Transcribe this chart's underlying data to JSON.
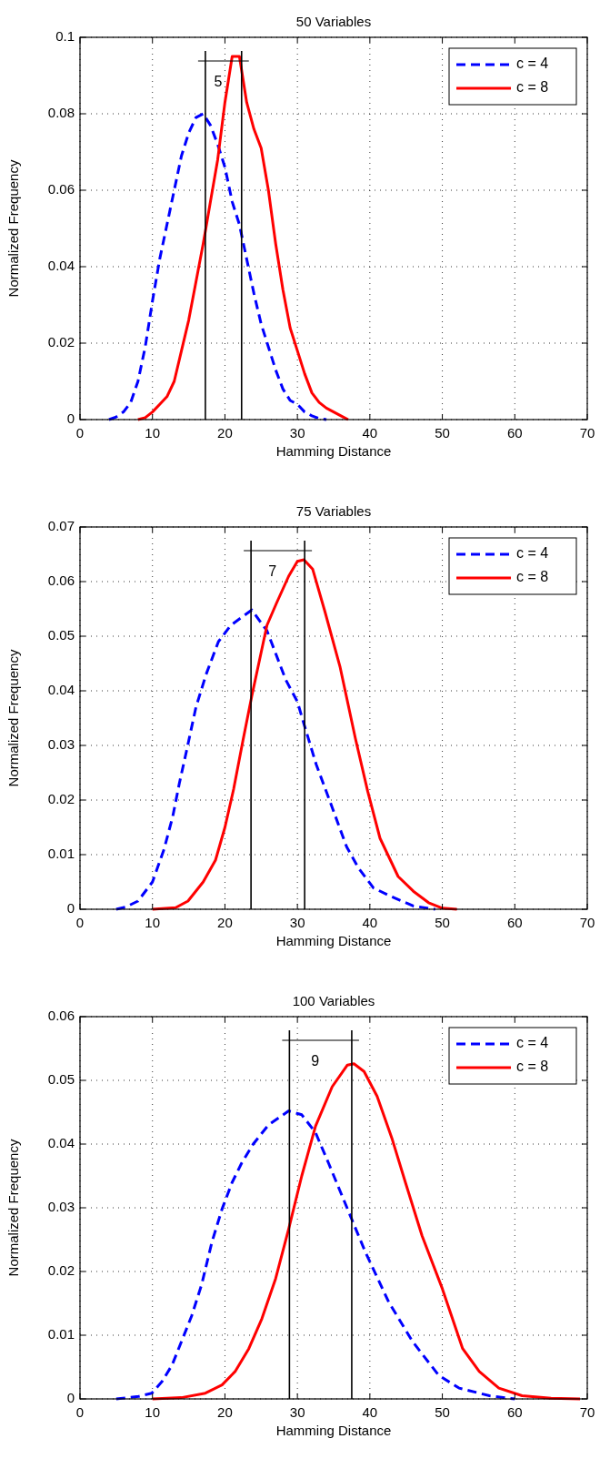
{
  "chart_data": [
    {
      "type": "line",
      "title": "50 Variables",
      "xlabel": "Hamming Distance",
      "ylabel": "Normalized Frequency",
      "xlim": [
        0,
        70
      ],
      "xticks": [
        0,
        10,
        20,
        30,
        40,
        50,
        60,
        70
      ],
      "ylim": [
        0,
        0.1
      ],
      "yticks": [
        0,
        0.02,
        0.04,
        0.06,
        0.08,
        0.1
      ],
      "grid": true,
      "legend": "top right",
      "series": [
        {
          "name": "c = 4",
          "color": "#0000ff",
          "line_style": "dashed",
          "x": [
            4,
            5,
            6,
            7,
            8,
            9,
            10,
            11,
            12,
            13,
            14,
            15,
            16,
            17,
            18,
            19,
            20,
            21,
            22,
            23,
            24,
            25,
            26,
            27,
            28,
            29,
            30,
            31,
            32,
            33,
            34
          ],
          "values": [
            0,
            0.0007,
            0.002,
            0.0045,
            0.01,
            0.019,
            0.031,
            0.042,
            0.051,
            0.06,
            0.069,
            0.075,
            0.079,
            0.08,
            0.077,
            0.072,
            0.066,
            0.057,
            0.051,
            0.042,
            0.033,
            0.025,
            0.019,
            0.013,
            0.008,
            0.005,
            0.004,
            0.002,
            0.001,
            0.0003,
            0
          ]
        },
        {
          "name": "c = 8",
          "color": "#ff0000",
          "line_style": "solid",
          "x": [
            8,
            9,
            10,
            11,
            12,
            13,
            14,
            15,
            16,
            17,
            18,
            19,
            20,
            21,
            22,
            23,
            24,
            25,
            26,
            27,
            28,
            29,
            30,
            31,
            32,
            33,
            34,
            35,
            36,
            37
          ],
          "values": [
            0,
            0.0005,
            0.002,
            0.004,
            0.006,
            0.01,
            0.018,
            0.026,
            0.036,
            0.046,
            0.057,
            0.068,
            0.083,
            0.095,
            0.095,
            0.083,
            0.076,
            0.071,
            0.06,
            0.046,
            0.034,
            0.024,
            0.018,
            0.012,
            0.007,
            0.0045,
            0.003,
            0.002,
            0.001,
            0
          ]
        }
      ],
      "ref_lines": [
        {
          "axis": "x",
          "value": 17.3,
          "color": "#000000"
        },
        {
          "axis": "x",
          "value": 22.3,
          "color": "#000000"
        }
      ],
      "annotations": [
        "5"
      ]
    },
    {
      "type": "line",
      "title": "75 Variables",
      "xlabel": "Hamming Distance",
      "ylabel": "Normalized Frequency",
      "xlim": [
        0,
        70
      ],
      "xticks": [
        0,
        10,
        20,
        30,
        40,
        50,
        60,
        70
      ],
      "ylim": [
        0,
        0.07
      ],
      "yticks": [
        0,
        0.01,
        0.02,
        0.03,
        0.04,
        0.05,
        0.06,
        0.07
      ],
      "grid": true,
      "legend": "top right",
      "series": [
        {
          "name": "c = 4",
          "color": "#0000ff",
          "line_style": "dashed",
          "x": [
            5,
            6.3,
            8,
            10,
            11.6,
            12.8,
            13.7,
            14.7,
            16,
            17.4,
            19.1,
            20.8,
            23.7,
            25.8,
            28.4,
            30,
            31,
            32.6,
            34.7,
            36.8,
            38.4,
            40.5,
            43,
            46,
            49
          ],
          "values": [
            0,
            0.0004,
            0.0015,
            0.005,
            0.011,
            0.017,
            0.023,
            0.029,
            0.037,
            0.043,
            0.049,
            0.052,
            0.0548,
            0.051,
            0.042,
            0.038,
            0.0335,
            0.0265,
            0.019,
            0.0114,
            0.0076,
            0.0039,
            0.0023,
            0.0006,
            0
          ]
        },
        {
          "name": "c = 8",
          "color": "#ff0000",
          "line_style": "solid",
          "x": [
            10,
            13.2,
            14.9,
            17,
            18.7,
            20,
            21.2,
            22.5,
            23.7,
            25.8,
            27.1,
            28.8,
            30,
            30.9,
            32.1,
            33.8,
            35.9,
            38,
            39.7,
            41.4,
            43.9,
            46,
            48.1,
            50,
            52
          ],
          "values": [
            0,
            0.0003,
            0.0015,
            0.005,
            0.009,
            0.015,
            0.022,
            0.031,
            0.039,
            0.052,
            0.056,
            0.061,
            0.0637,
            0.064,
            0.0623,
            0.0545,
            0.0443,
            0.0313,
            0.0216,
            0.013,
            0.006,
            0.0033,
            0.0012,
            0.0002,
            0
          ]
        }
      ],
      "ref_lines": [
        {
          "axis": "x",
          "value": 23.6,
          "color": "#000000"
        },
        {
          "axis": "x",
          "value": 31,
          "color": "#000000"
        }
      ],
      "annotations": [
        "7"
      ]
    },
    {
      "type": "line",
      "title": "100 Variables",
      "xlabel": "Hamming Distance",
      "ylabel": "Normalized Frequency",
      "xlim": [
        0,
        70
      ],
      "xticks": [
        0,
        10,
        20,
        30,
        40,
        50,
        60,
        70
      ],
      "ylim": [
        0,
        0.06
      ],
      "yticks": [
        0,
        0.01,
        0.02,
        0.03,
        0.04,
        0.05,
        0.06
      ],
      "grid": true,
      "legend": "top right",
      "series": [
        {
          "name": "c = 4",
          "color": "#0000ff",
          "line_style": "dashed",
          "x": [
            5,
            8.1,
            9.9,
            11.3,
            12.7,
            14,
            15.4,
            16.8,
            18.2,
            19.6,
            21,
            22.3,
            23.9,
            26,
            28.8,
            30.6,
            32.5,
            34.3,
            37.1,
            39.4,
            42.6,
            45.9,
            49.5,
            52.3,
            56.5,
            60
          ],
          "values": [
            0,
            0.0004,
            0.0009,
            0.0027,
            0.0053,
            0.009,
            0.013,
            0.018,
            0.0246,
            0.0298,
            0.034,
            0.037,
            0.04,
            0.043,
            0.0452,
            0.0446,
            0.0418,
            0.037,
            0.0293,
            0.023,
            0.0152,
            0.009,
            0.0037,
            0.0017,
            0.0005,
            0
          ]
        },
        {
          "name": "c = 8",
          "color": "#ff0000",
          "line_style": "solid",
          "x": [
            10,
            14,
            17.3,
            19.6,
            21.4,
            23.3,
            25.1,
            27,
            28.8,
            30.6,
            32.5,
            34.8,
            36.9,
            37.8,
            39.2,
            41,
            43.1,
            44.9,
            47.2,
            50,
            52.8,
            55.1,
            57.8,
            61,
            65,
            69
          ],
          "values": [
            0,
            0.0002,
            0.0009,
            0.0022,
            0.0043,
            0.0079,
            0.0126,
            0.0189,
            0.0267,
            0.035,
            0.0428,
            0.049,
            0.0524,
            0.0526,
            0.0514,
            0.0475,
            0.0407,
            0.034,
            0.0256,
            0.0173,
            0.0079,
            0.0043,
            0.0017,
            0.0005,
            0.0001,
            0
          ]
        }
      ],
      "ref_lines": [
        {
          "axis": "x",
          "value": 28.9,
          "color": "#000000"
        },
        {
          "axis": "x",
          "value": 37.5,
          "color": "#000000"
        }
      ],
      "annotations": [
        "9"
      ]
    }
  ]
}
